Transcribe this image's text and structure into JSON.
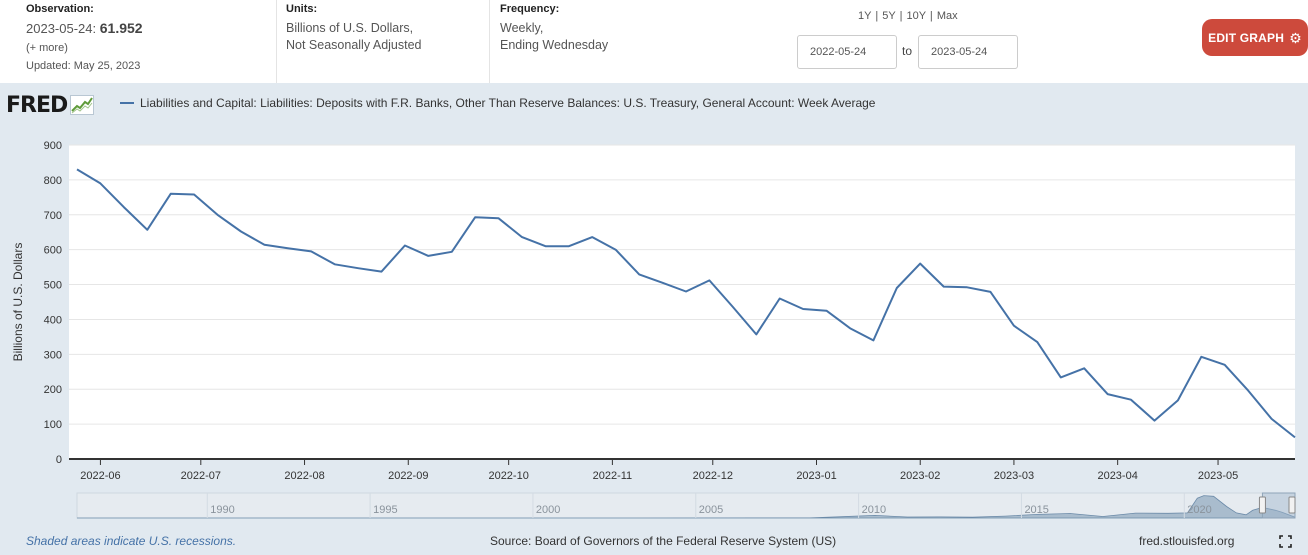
{
  "header": {
    "observation": {
      "label": "Observation:",
      "date": "2023-05-24:",
      "value": "61.952",
      "more": "(+ more)",
      "updated": "Updated: May 25, 2023"
    },
    "units": {
      "label": "Units:",
      "line1": "Billions of U.S. Dollars,",
      "line2": "Not Seasonally Adjusted"
    },
    "frequency": {
      "label": "Frequency:",
      "line1": "Weekly,",
      "line2": "Ending Wednesday"
    },
    "range_links": [
      "1Y",
      "5Y",
      "10Y",
      "Max"
    ],
    "date_start": "2022-05-24",
    "date_to": "to",
    "date_end": "2023-05-24",
    "edit_button": "EDIT GRAPH"
  },
  "logo": {
    "text": "FRED"
  },
  "footer": {
    "recession_note": "Shaded areas indicate U.S. recessions.",
    "source": "Source: Board of Governors of the Federal Reserve System (US)",
    "site": "fred.stlouisfed.org"
  },
  "colors": {
    "line": "#4572a7",
    "panel": "#e1e9f0",
    "button": "#cd4a3c"
  },
  "chart_data": {
    "type": "line",
    "title": "",
    "series": [
      {
        "name": "Liabilities and Capital: Liabilities: Deposits with F.R. Banks, Other Than Reserve Balances: U.S. Treasury, General Account: Week Average",
        "x": [
          "2022-05-25",
          "2022-06-01",
          "2022-06-08",
          "2022-06-15",
          "2022-06-22",
          "2022-06-29",
          "2022-07-06",
          "2022-07-13",
          "2022-07-20",
          "2022-07-27",
          "2022-08-03",
          "2022-08-10",
          "2022-08-17",
          "2022-08-24",
          "2022-08-31",
          "2022-09-07",
          "2022-09-14",
          "2022-09-21",
          "2022-09-28",
          "2022-10-05",
          "2022-10-12",
          "2022-10-19",
          "2022-10-26",
          "2022-11-02",
          "2022-11-09",
          "2022-11-16",
          "2022-11-23",
          "2022-11-30",
          "2022-12-07",
          "2022-12-14",
          "2022-12-21",
          "2022-12-28",
          "2023-01-04",
          "2023-01-11",
          "2023-01-18",
          "2023-01-25",
          "2023-02-01",
          "2023-02-08",
          "2023-02-15",
          "2023-02-22",
          "2023-03-01",
          "2023-03-08",
          "2023-03-15",
          "2023-03-22",
          "2023-03-29",
          "2023-04-05",
          "2023-04-12",
          "2023-04-19",
          "2023-04-26",
          "2023-05-03",
          "2023-05-10",
          "2023-05-17",
          "2023-05-24"
        ],
        "values": [
          830,
          790,
          722,
          657,
          760,
          758,
          700,
          652,
          614,
          604,
          595,
          558,
          547,
          537,
          612,
          582,
          594,
          693,
          690,
          636,
          610,
          610,
          636,
          600,
          529,
          505,
          480,
          512,
          436,
          357,
          460,
          430,
          425,
          375,
          340,
          490,
          560,
          494,
          492,
          479,
          382,
          335,
          234,
          260,
          186,
          170,
          110,
          168,
          293,
          270,
          196,
          115,
          62
        ]
      }
    ],
    "ylabel": "Billions of U.S. Dollars",
    "xlabel": "",
    "ylim": [
      0,
      900
    ],
    "yticks": [
      0,
      100,
      200,
      300,
      400,
      500,
      600,
      700,
      800,
      900
    ],
    "xticks": [
      {
        "label": "2022-06",
        "date": "2022-06-01"
      },
      {
        "label": "2022-07",
        "date": "2022-07-01"
      },
      {
        "label": "2022-08",
        "date": "2022-08-01"
      },
      {
        "label": "2022-09",
        "date": "2022-09-01"
      },
      {
        "label": "2022-10",
        "date": "2022-10-01"
      },
      {
        "label": "2022-11",
        "date": "2022-11-01"
      },
      {
        "label": "2022-12",
        "date": "2022-12-01"
      },
      {
        "label": "2023-01",
        "date": "2023-01-01"
      },
      {
        "label": "2023-02",
        "date": "2023-02-01"
      },
      {
        "label": "2023-03",
        "date": "2023-03-01"
      },
      {
        "label": "2023-04",
        "date": "2023-04-01"
      },
      {
        "label": "2023-05",
        "date": "2023-05-01"
      }
    ],
    "xrange": [
      "2022-05-25",
      "2023-05-24"
    ],
    "grid": true,
    "legend": "top-left",
    "navigator": {
      "year_labels": [
        "1990",
        "1995",
        "2000",
        "2005",
        "2010",
        "2015",
        "2020"
      ],
      "year_range": [
        1986,
        2023.4
      ],
      "profile": [
        [
          1986,
          3
        ],
        [
          2000,
          3
        ],
        [
          2008.5,
          5
        ],
        [
          2009.5,
          100
        ],
        [
          2010.5,
          200
        ],
        [
          2011.5,
          80
        ],
        [
          2012.5,
          90
        ],
        [
          2013.5,
          60
        ],
        [
          2014.5,
          150
        ],
        [
          2015.5,
          280
        ],
        [
          2016.5,
          350
        ],
        [
          2017.5,
          120
        ],
        [
          2018.5,
          380
        ],
        [
          2019.5,
          370
        ],
        [
          2020.1,
          400
        ],
        [
          2020.4,
          1550
        ],
        [
          2020.6,
          1750
        ],
        [
          2020.9,
          1700
        ],
        [
          2021.3,
          900
        ],
        [
          2021.6,
          400
        ],
        [
          2021.9,
          250
        ],
        [
          2022.1,
          600
        ],
        [
          2022.4,
          830
        ],
        [
          2022.8,
          600
        ],
        [
          2023.0,
          450
        ],
        [
          2023.4,
          60
        ]
      ],
      "profile_max": 1800,
      "window": [
        2022.4,
        2023.4
      ]
    }
  }
}
